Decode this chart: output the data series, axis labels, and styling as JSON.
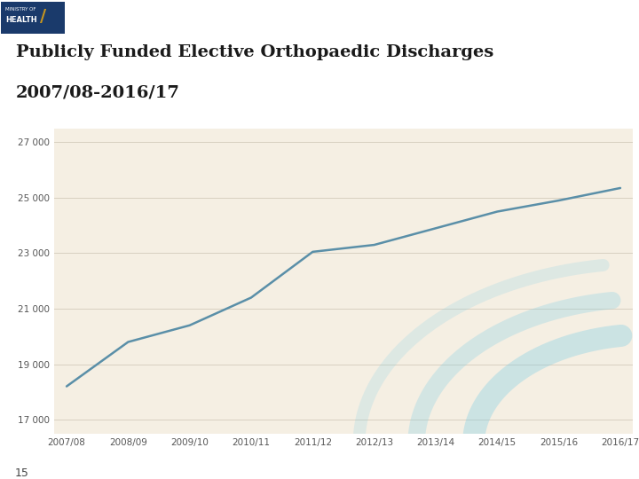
{
  "title_line1": "Publicly Funded Elective Orthopaedic Discharges",
  "title_line2": "2007/08-2016/17",
  "categories": [
    "2007/08",
    "2008/09",
    "2009/10",
    "2010/11",
    "2011/12",
    "2012/13",
    "2013/14",
    "2014/15",
    "2015/16",
    "2016/17"
  ],
  "values": [
    18200,
    19800,
    20400,
    21400,
    23050,
    23300,
    23900,
    24500,
    24900,
    25350
  ],
  "line_color": "#5a8fa8",
  "line_width": 1.8,
  "ylim": [
    16500,
    27500
  ],
  "yticks": [
    17000,
    19000,
    21000,
    23000,
    25000,
    27000
  ],
  "ytick_labels": [
    "17 000",
    "19 000",
    "21 000",
    "23 000",
    "25 000",
    "27 000"
  ],
  "bg_color": "#f5efe3",
  "header_bar_color": "#7dcde4",
  "title_color": "#1a1a1a",
  "grid_color": "#d8d0c0",
  "tick_color": "#555555",
  "bottom_bar_color": "#4db8d4",
  "page_number": "15",
  "logo_bg": "#1a3a6b",
  "logo_accent": "#c8961e"
}
